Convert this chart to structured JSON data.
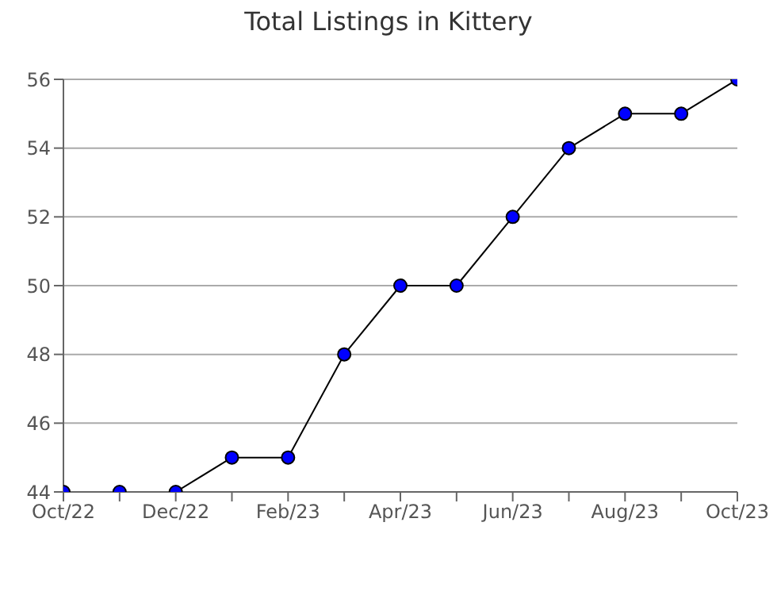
{
  "chart_data": {
    "type": "line",
    "title": "Total Listings in Kittery",
    "categories": [
      "Oct/22",
      null,
      "Dec/22",
      null,
      "Feb/23",
      null,
      "Apr/23",
      null,
      "Jun/23",
      null,
      "Aug/23",
      null,
      "Oct/23"
    ],
    "series": [
      {
        "color": "#0000ff",
        "values": [
          44,
          44,
          44,
          45,
          45,
          48,
          50,
          50,
          52,
          54,
          55,
          55,
          56
        ]
      }
    ],
    "marker": "circle",
    "ylim": [
      44,
      56
    ],
    "yticks": [
      44,
      46,
      48,
      50,
      52,
      54,
      56
    ],
    "grid": "y",
    "line_style": "solid"
  }
}
